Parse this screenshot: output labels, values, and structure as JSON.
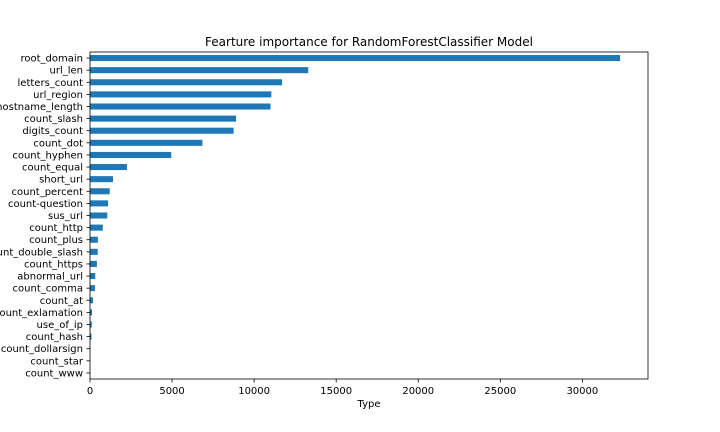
{
  "chart_data": {
    "type": "bar",
    "orientation": "horizontal",
    "title": "Fearture importance for RandomForestClassifier Model",
    "xlabel": "Type",
    "ylabel": "",
    "xlim": [
      0,
      34000
    ],
    "xticks": [
      0,
      5000,
      10000,
      15000,
      20000,
      25000,
      30000
    ],
    "grid": false,
    "bar_color": "#1f77b4",
    "categories": [
      "root_domain",
      "url_len",
      "letters_count",
      "url_region",
      "hostname_length",
      "count_slash",
      "digits_count",
      "count_dot",
      "count_hyphen",
      "count_equal",
      "short_url",
      "count_percent",
      "count-question",
      "sus_url",
      "count_http",
      "count_plus",
      "count_double_slash",
      "count_https",
      "abnormal_url",
      "count_comma",
      "count_at",
      "count_exlamation",
      "use_of_ip",
      "count_hash",
      "count_dollarsign",
      "count_star",
      "count_www"
    ],
    "values": [
      32300,
      13300,
      11700,
      11050,
      11000,
      8900,
      8750,
      6850,
      4950,
      2250,
      1400,
      1200,
      1100,
      1050,
      780,
      480,
      470,
      420,
      320,
      300,
      180,
      120,
      110,
      90,
      25,
      10,
      5
    ]
  }
}
